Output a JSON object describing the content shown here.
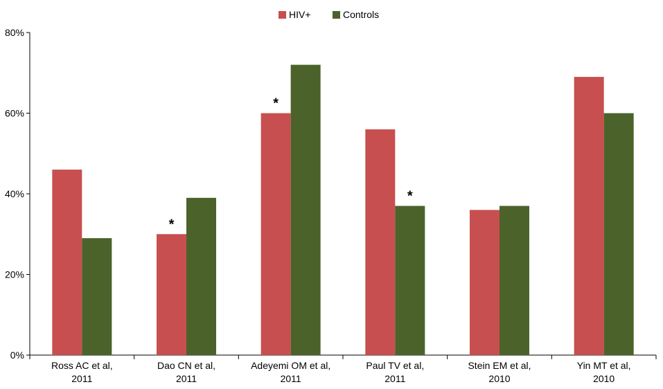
{
  "colors": {
    "hiv": "#c84f4f",
    "controls": "#4b632a"
  },
  "chart_data": {
    "type": "bar",
    "title": "",
    "xlabel": "",
    "ylabel": "",
    "ylim": [
      0,
      80
    ],
    "yticks": [
      "0%",
      "20%",
      "40%",
      "60%",
      "80%"
    ],
    "ytick_values": [
      0,
      20,
      40,
      60,
      80
    ],
    "grid": false,
    "legend_position": "top",
    "categories": [
      [
        "Ross AC et al,",
        "2011"
      ],
      [
        "Dao CN et al,",
        "2011"
      ],
      [
        "Adeyemi OM et al,",
        "2011"
      ],
      [
        "Paul TV et al,",
        "2011"
      ],
      [
        "Stein EM et al,",
        "2010"
      ],
      [
        "Yin MT et al,",
        "2010"
      ]
    ],
    "series": [
      {
        "name": "HIV+",
        "values": [
          46,
          30,
          60,
          56,
          36,
          69
        ]
      },
      {
        "name": "Controls",
        "values": [
          29,
          39,
          72,
          37,
          37,
          60
        ]
      }
    ],
    "annotations": [
      {
        "text": "*",
        "category_index": 1,
        "series_index": 0
      },
      {
        "text": "*",
        "category_index": 2,
        "series_index": 0
      },
      {
        "text": "*",
        "category_index": 3,
        "series_index": 1
      }
    ]
  }
}
